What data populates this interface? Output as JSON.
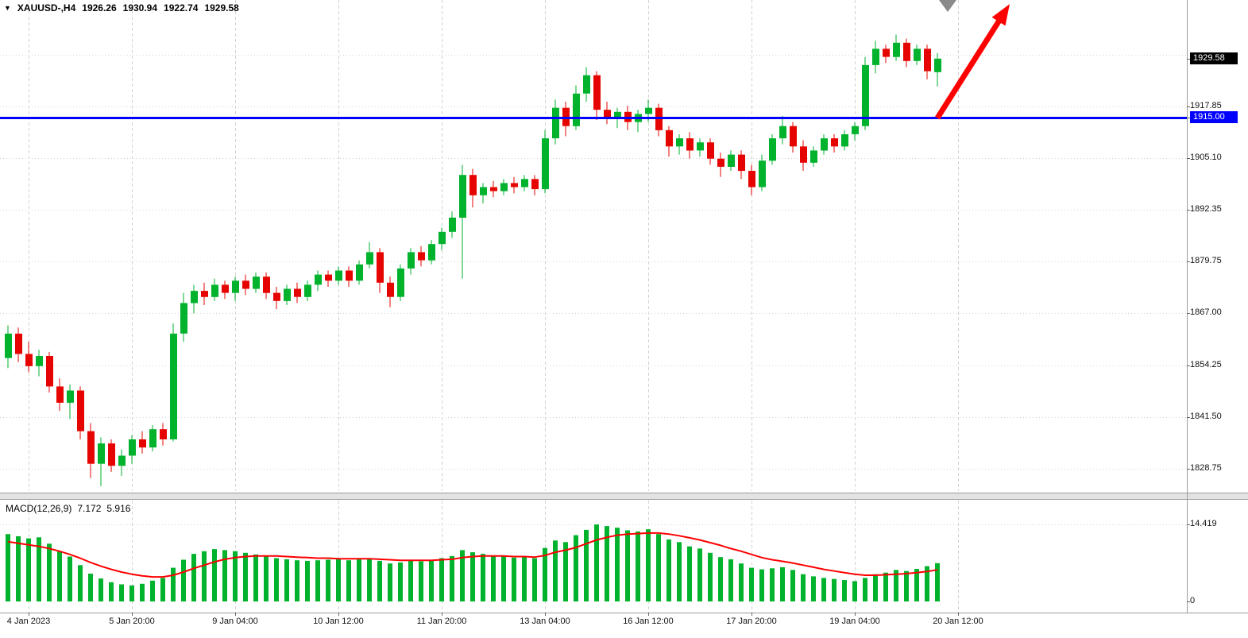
{
  "header": {
    "collapse_icon": "▼",
    "symbol_period": "XAUUSD-,H4",
    "open": "1926.26",
    "high": "1930.94",
    "low": "1922.74",
    "close": "1929.58"
  },
  "chart_data": {
    "type": "candlestick",
    "symbol": "XAUUSD-",
    "timeframe": "H4",
    "current_bar": {
      "open": 1926.26,
      "high": 1930.94,
      "low": 1922.74,
      "close": 1929.58
    },
    "colors": {
      "bull": "#00b22c",
      "bear": "#e60400",
      "signal": "#ff0000",
      "grid": "#d3d3d3",
      "hline": "#0000ff",
      "arrow": "#ff0000",
      "badge_bid_bg": "#000000",
      "badge_hline_bg": "#0000ff"
    },
    "price_axis": {
      "visible_range": {
        "top": 1944.0,
        "bottom": 1823.3
      },
      "labels": [
        {
          "text": "1929.58",
          "price": 1929.58,
          "style": "bid"
        },
        {
          "text": "1917.85",
          "price": 1917.85,
          "style": "plain"
        },
        {
          "text": "1915.00",
          "price": 1915.0,
          "style": "hline"
        },
        {
          "text": "1905.10",
          "price": 1905.1,
          "style": "plain"
        },
        {
          "text": "1892.35",
          "price": 1892.35,
          "style": "plain"
        },
        {
          "text": "1879.75",
          "price": 1879.75,
          "style": "plain"
        },
        {
          "text": "1867.00",
          "price": 1867.0,
          "style": "plain"
        },
        {
          "text": "1854.25",
          "price": 1854.25,
          "style": "plain"
        },
        {
          "text": "1841.50",
          "price": 1841.5,
          "style": "plain"
        },
        {
          "text": "1828.75",
          "price": 1828.75,
          "style": "plain"
        }
      ],
      "gridline_prices": [
        1930.6,
        1917.85,
        1905.1,
        1892.35,
        1879.75,
        1867.0,
        1854.25,
        1841.5,
        1828.75
      ]
    },
    "time_axis": {
      "labels": [
        {
          "text": "4 Jan 2023",
          "bar_index": 2
        },
        {
          "text": "5 Jan 20:00",
          "bar_index": 12
        },
        {
          "text": "9 Jan 04:00",
          "bar_index": 22
        },
        {
          "text": "10 Jan 12:00",
          "bar_index": 32
        },
        {
          "text": "11 Jan 20:00",
          "bar_index": 42
        },
        {
          "text": "13 Jan 04:00",
          "bar_index": 52
        },
        {
          "text": "16 Jan 12:00",
          "bar_index": 62
        },
        {
          "text": "17 Jan 20:00",
          "bar_index": 72
        },
        {
          "text": "19 Jan 04:00",
          "bar_index": 82
        },
        {
          "text": "20 Jan 12:00",
          "bar_index": 92
        }
      ]
    },
    "horizontal_line": {
      "price": 1915.0,
      "label": "1915.00",
      "color": "#0000ff"
    },
    "trend_arrow": {
      "from": {
        "bar_index": 90,
        "price": 1915.0
      },
      "to": {
        "bar_index": 97,
        "price": 1943.0
      },
      "color": "#ff0000"
    },
    "pointer": {
      "bar_index": 91
    },
    "candles": [
      [
        1856,
        1864,
        1853.5,
        1862
      ],
      [
        1862,
        1863.5,
        1855,
        1857
      ],
      [
        1857,
        1860,
        1852.5,
        1854
      ],
      [
        1854,
        1858,
        1851.5,
        1856.5
      ],
      [
        1856.5,
        1857.5,
        1847.5,
        1849
      ],
      [
        1849,
        1851,
        1843,
        1845
      ],
      [
        1845,
        1849.5,
        1841,
        1848
      ],
      [
        1848,
        1849,
        1836,
        1838
      ],
      [
        1838,
        1840,
        1826.5,
        1830
      ],
      [
        1830,
        1836.5,
        1824.5,
        1835
      ],
      [
        1835,
        1836,
        1828,
        1829.5
      ],
      [
        1829.5,
        1833.5,
        1827,
        1832
      ],
      [
        1832,
        1837,
        1830,
        1836
      ],
      [
        1836,
        1838,
        1832.5,
        1834
      ],
      [
        1834,
        1839.5,
        1833,
        1838.5
      ],
      [
        1838.5,
        1840,
        1834.5,
        1836
      ],
      [
        1836,
        1864.5,
        1835.5,
        1862
      ],
      [
        1862,
        1872,
        1860,
        1869.5
      ],
      [
        1869.5,
        1874,
        1867,
        1872.5
      ],
      [
        1872.5,
        1874.5,
        1869,
        1871
      ],
      [
        1871,
        1875.5,
        1870,
        1874
      ],
      [
        1874,
        1875,
        1870.5,
        1872
      ],
      [
        1872,
        1876,
        1870,
        1875
      ],
      [
        1875,
        1876.5,
        1871.5,
        1873
      ],
      [
        1873,
        1877,
        1872,
        1876
      ],
      [
        1876,
        1877,
        1870.5,
        1872
      ],
      [
        1872,
        1873.5,
        1868,
        1870
      ],
      [
        1870,
        1874,
        1869,
        1873
      ],
      [
        1873,
        1874.5,
        1869.5,
        1871
      ],
      [
        1871,
        1875,
        1870,
        1874
      ],
      [
        1874,
        1877.5,
        1872.5,
        1876.5
      ],
      [
        1876.5,
        1877.5,
        1873.5,
        1875
      ],
      [
        1875,
        1878.5,
        1874,
        1877.5
      ],
      [
        1877.5,
        1878.5,
        1873.5,
        1875
      ],
      [
        1875,
        1880,
        1874,
        1879
      ],
      [
        1879,
        1884.5,
        1878,
        1882
      ],
      [
        1882,
        1883,
        1872,
        1874.5
      ],
      [
        1874.5,
        1876,
        1868.5,
        1871
      ],
      [
        1871,
        1879,
        1870,
        1878
      ],
      [
        1878,
        1883,
        1876.5,
        1882
      ],
      [
        1882,
        1883.5,
        1878.5,
        1880
      ],
      [
        1880,
        1885,
        1879,
        1884
      ],
      [
        1884,
        1888,
        1882.5,
        1887
      ],
      [
        1887,
        1892,
        1885.5,
        1890.5
      ],
      [
        1890.5,
        1903.5,
        1875.5,
        1901
      ],
      [
        1901,
        1902.5,
        1893,
        1896
      ],
      [
        1896,
        1899,
        1894,
        1898
      ],
      [
        1898,
        1899.5,
        1895.5,
        1897
      ],
      [
        1897,
        1900,
        1896,
        1899
      ],
      [
        1899,
        1900.5,
        1896.5,
        1898
      ],
      [
        1898,
        1901,
        1897,
        1900
      ],
      [
        1900,
        1901,
        1896,
        1897.5
      ],
      [
        1897.5,
        1912,
        1896.5,
        1910
      ],
      [
        1910,
        1919.5,
        1908.5,
        1917.5
      ],
      [
        1917.5,
        1919,
        1910.5,
        1913
      ],
      [
        1913,
        1923,
        1912,
        1921
      ],
      [
        1921,
        1927.5,
        1919,
        1925.5
      ],
      [
        1925.5,
        1926.5,
        1914.5,
        1917
      ],
      [
        1917,
        1919,
        1913.5,
        1915
      ],
      [
        1915,
        1917.5,
        1912.5,
        1916.5
      ],
      [
        1916.5,
        1918,
        1912,
        1914
      ],
      [
        1914,
        1917,
        1911.5,
        1916
      ],
      [
        1916,
        1919.5,
        1914,
        1917.5
      ],
      [
        1917.5,
        1918.5,
        1910.5,
        1912
      ],
      [
        1912,
        1913,
        1905.5,
        1908
      ],
      [
        1908,
        1911,
        1906,
        1910
      ],
      [
        1910,
        1911.5,
        1905,
        1907
      ],
      [
        1907,
        1910,
        1905.5,
        1909
      ],
      [
        1909,
        1910,
        1903.5,
        1905
      ],
      [
        1905,
        1906.5,
        1900.5,
        1903
      ],
      [
        1903,
        1907,
        1902,
        1906
      ],
      [
        1906,
        1907,
        1900,
        1902
      ],
      [
        1902,
        1903.5,
        1896,
        1898
      ],
      [
        1898,
        1906,
        1897,
        1904.5
      ],
      [
        1904.5,
        1911,
        1903.5,
        1910
      ],
      [
        1910,
        1915.5,
        1908.5,
        1913
      ],
      [
        1913,
        1914,
        1906.5,
        1908
      ],
      [
        1908,
        1909.5,
        1902,
        1904
      ],
      [
        1904,
        1908,
        1903,
        1907
      ],
      [
        1907,
        1911,
        1906,
        1910
      ],
      [
        1910,
        1911,
        1906.5,
        1908
      ],
      [
        1908,
        1912,
        1907,
        1911
      ],
      [
        1911,
        1914,
        1909.5,
        1913
      ],
      [
        1913,
        1930,
        1912,
        1928
      ],
      [
        1928,
        1934,
        1926,
        1932
      ],
      [
        1932,
        1933,
        1928.5,
        1930
      ],
      [
        1930,
        1935.5,
        1929,
        1933.5
      ],
      [
        1933.5,
        1934.5,
        1927.5,
        1929
      ],
      [
        1929,
        1933,
        1928,
        1932
      ],
      [
        1932,
        1933,
        1924.5,
        1926.5
      ],
      [
        1926.26,
        1930.94,
        1922.74,
        1929.58
      ]
    ],
    "macd": {
      "label": "MACD(12,26,9)",
      "values_text": {
        "main": "7.172",
        "signal": "5.916"
      },
      "scale": {
        "max_label": "14.419",
        "max": 14.419,
        "zero_label": "0"
      },
      "histogram": [
        12.6,
        12.2,
        11.8,
        12.0,
        10.8,
        9.4,
        8.4,
        6.8,
        5.2,
        4.3,
        3.6,
        3.2,
        3.0,
        3.3,
        3.9,
        4.4,
        6.3,
        7.8,
        8.9,
        9.4,
        9.8,
        9.6,
        9.4,
        9.1,
        8.8,
        8.5,
        8.1,
        7.9,
        7.7,
        7.6,
        7.7,
        7.8,
        7.9,
        7.7,
        7.9,
        8.1,
        7.6,
        7.1,
        7.3,
        7.6,
        7.5,
        7.7,
        8.1,
        8.5,
        9.6,
        9.2,
        8.9,
        8.6,
        8.4,
        8.2,
        8.3,
        8.1,
        10.0,
        11.4,
        11.1,
        12.4,
        13.4,
        14.4,
        14.1,
        13.8,
        13.3,
        13.1,
        13.5,
        12.6,
        11.6,
        11.1,
        10.3,
        9.9,
        9.1,
        8.3,
        7.9,
        7.1,
        6.3,
        6.0,
        6.2,
        6.4,
        5.9,
        5.1,
        4.7,
        4.4,
        4.2,
        4.0,
        3.8,
        4.4,
        5.1,
        5.4,
        5.9,
        5.7,
        6.1,
        6.6,
        7.172
      ],
      "signal_line": [
        11.2,
        10.9,
        10.6,
        10.3,
        9.9,
        9.4,
        8.8,
        8.1,
        7.3,
        6.6,
        6.0,
        5.5,
        5.1,
        4.8,
        4.6,
        4.6,
        4.9,
        5.5,
        6.2,
        6.8,
        7.4,
        7.9,
        8.2,
        8.4,
        8.5,
        8.5,
        8.5,
        8.4,
        8.3,
        8.2,
        8.1,
        8.1,
        8.0,
        8.0,
        8.0,
        8.0,
        7.9,
        7.8,
        7.7,
        7.7,
        7.7,
        7.7,
        7.8,
        7.9,
        8.2,
        8.4,
        8.5,
        8.5,
        8.5,
        8.4,
        8.4,
        8.3,
        8.6,
        9.2,
        9.6,
        10.1,
        10.8,
        11.5,
        12.0,
        12.4,
        12.6,
        12.7,
        12.8,
        12.8,
        12.6,
        12.3,
        11.9,
        11.5,
        11.0,
        10.5,
        9.9,
        9.4,
        8.8,
        8.2,
        7.8,
        7.5,
        7.2,
        6.8,
        6.4,
        6.0,
        5.7,
        5.4,
        5.1,
        4.9,
        4.9,
        5.0,
        5.1,
        5.2,
        5.4,
        5.6,
        5.916
      ]
    }
  }
}
